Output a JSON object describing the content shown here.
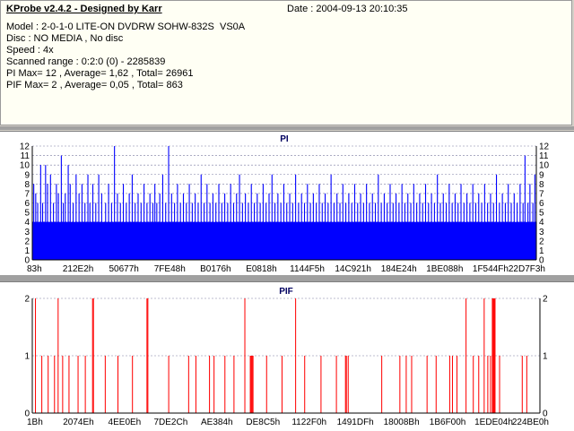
{
  "header": {
    "title": "KProbe v2.4.2 - Designed by Karr",
    "date": "Date : 2004-09-13 20:10:35",
    "lines": [
      "Model : 2-0-1-0 LITE-ON DVDRW SOHW-832S  VS0A",
      "Disc : NO MEDIA , No disc",
      "Speed : 4x",
      "Scanned range : 0:2:0 (0) - 2285839",
      "PI Max= 12 , Average= 1,62 , Total= 26961",
      "PIF Max= 2 , Average= 0,05 , Total= 863"
    ]
  },
  "colors": {
    "pi": "#0000ff",
    "pif": "#ff0000",
    "grid": "#7a7aa0"
  },
  "chart_data": [
    {
      "type": "bar",
      "title": "PI",
      "ylim": [
        0,
        12
      ],
      "yticks": [
        "0",
        "1",
        "2",
        "3",
        "4",
        "5",
        "6",
        "7",
        "8",
        "9",
        "10",
        "11",
        "12"
      ],
      "xtick_labels": [
        "83h",
        "212E2h",
        "50677h",
        "7FE48h",
        "B0176h",
        "E0818h",
        "1144F5h",
        "14C921h",
        "184E24h",
        "1BE088h",
        "1F544Fh",
        "22D7F3h"
      ],
      "grid": true,
      "baseline_value": 4,
      "spikes": [
        [
          1,
          8
        ],
        [
          3,
          7
        ],
        [
          5,
          6
        ],
        [
          8,
          10
        ],
        [
          10,
          6
        ],
        [
          13,
          10
        ],
        [
          15,
          8
        ],
        [
          18,
          9
        ],
        [
          21,
          6
        ],
        [
          24,
          8
        ],
        [
          26,
          7
        ],
        [
          29,
          11
        ],
        [
          31,
          6
        ],
        [
          33,
          7
        ],
        [
          36,
          10
        ],
        [
          38,
          8
        ],
        [
          41,
          6
        ],
        [
          44,
          9
        ],
        [
          47,
          7
        ],
        [
          50,
          8
        ],
        [
          53,
          6
        ],
        [
          56,
          9
        ],
        [
          58,
          6
        ],
        [
          61,
          8
        ],
        [
          64,
          6
        ],
        [
          67,
          9
        ],
        [
          70,
          7
        ],
        [
          74,
          6
        ],
        [
          77,
          8
        ],
        [
          80,
          6
        ],
        [
          83,
          12
        ],
        [
          86,
          7
        ],
        [
          89,
          6
        ],
        [
          92,
          8
        ],
        [
          95,
          6
        ],
        [
          98,
          7
        ],
        [
          101,
          9
        ],
        [
          104,
          6
        ],
        [
          107,
          7
        ],
        [
          110,
          6
        ],
        [
          113,
          8
        ],
        [
          116,
          6
        ],
        [
          119,
          7
        ],
        [
          122,
          6
        ],
        [
          124,
          8
        ],
        [
          126,
          6
        ],
        [
          129,
          7
        ],
        [
          132,
          9
        ],
        [
          135,
          6
        ],
        [
          138,
          12
        ],
        [
          141,
          7
        ],
        [
          144,
          6
        ],
        [
          147,
          8
        ],
        [
          150,
          6
        ],
        [
          153,
          7
        ],
        [
          156,
          6
        ],
        [
          159,
          8
        ],
        [
          162,
          6
        ],
        [
          165,
          7
        ],
        [
          168,
          6
        ],
        [
          171,
          9
        ],
        [
          174,
          6
        ],
        [
          177,
          8
        ],
        [
          180,
          6
        ],
        [
          183,
          7
        ],
        [
          186,
          6
        ],
        [
          189,
          8
        ],
        [
          192,
          6
        ],
        [
          195,
          7
        ],
        [
          198,
          6
        ],
        [
          201,
          8
        ],
        [
          204,
          6
        ],
        [
          207,
          7
        ],
        [
          210,
          9
        ],
        [
          213,
          6
        ],
        [
          216,
          7
        ],
        [
          219,
          6
        ],
        [
          222,
          8
        ],
        [
          225,
          6
        ],
        [
          228,
          7
        ],
        [
          231,
          6
        ],
        [
          234,
          8
        ],
        [
          237,
          6
        ],
        [
          240,
          7
        ],
        [
          243,
          9
        ],
        [
          246,
          6
        ],
        [
          249,
          7
        ],
        [
          252,
          6
        ],
        [
          255,
          8
        ],
        [
          258,
          6
        ],
        [
          261,
          7
        ],
        [
          264,
          6
        ],
        [
          267,
          9
        ],
        [
          270,
          6
        ],
        [
          273,
          7
        ],
        [
          276,
          6
        ],
        [
          279,
          8
        ],
        [
          282,
          6
        ],
        [
          285,
          7
        ],
        [
          288,
          6
        ],
        [
          291,
          8
        ],
        [
          294,
          6
        ],
        [
          297,
          7
        ],
        [
          300,
          6
        ],
        [
          303,
          9
        ],
        [
          306,
          6
        ],
        [
          309,
          7
        ],
        [
          312,
          6
        ],
        [
          315,
          8
        ],
        [
          318,
          6
        ],
        [
          321,
          7
        ],
        [
          324,
          6
        ],
        [
          327,
          8
        ],
        [
          330,
          6
        ],
        [
          333,
          7
        ],
        [
          336,
          6
        ],
        [
          339,
          8
        ],
        [
          342,
          6
        ],
        [
          345,
          7
        ],
        [
          348,
          6
        ],
        [
          351,
          9
        ],
        [
          354,
          6
        ],
        [
          357,
          7
        ],
        [
          360,
          6
        ],
        [
          363,
          8
        ],
        [
          366,
          6
        ],
        [
          369,
          7
        ],
        [
          372,
          6
        ],
        [
          375,
          8
        ],
        [
          378,
          6
        ],
        [
          381,
          7
        ],
        [
          384,
          6
        ],
        [
          387,
          8
        ],
        [
          390,
          6
        ],
        [
          393,
          7
        ],
        [
          396,
          6
        ],
        [
          399,
          8
        ],
        [
          402,
          6
        ],
        [
          405,
          7
        ],
        [
          408,
          6
        ],
        [
          411,
          9
        ],
        [
          414,
          6
        ],
        [
          417,
          7
        ],
        [
          420,
          6
        ],
        [
          423,
          8
        ],
        [
          426,
          6
        ],
        [
          429,
          7
        ],
        [
          432,
          6
        ],
        [
          435,
          8
        ],
        [
          438,
          6
        ],
        [
          441,
          7
        ],
        [
          444,
          6
        ],
        [
          447,
          8
        ],
        [
          450,
          6
        ],
        [
          453,
          7
        ],
        [
          456,
          6
        ],
        [
          459,
          8
        ],
        [
          462,
          6
        ],
        [
          465,
          7
        ],
        [
          468,
          6
        ],
        [
          471,
          9
        ],
        [
          474,
          6
        ],
        [
          477,
          7
        ],
        [
          480,
          6
        ],
        [
          483,
          8
        ],
        [
          486,
          6
        ],
        [
          489,
          7
        ],
        [
          492,
          6
        ],
        [
          495,
          8
        ],
        [
          498,
          6
        ],
        [
          500,
          11
        ],
        [
          503,
          6
        ],
        [
          505,
          8
        ],
        [
          508,
          6
        ],
        [
          510,
          9
        ]
      ]
    },
    {
      "type": "bar",
      "title": "PIF",
      "ylim": [
        0,
        2
      ],
      "yticks": [
        "0",
        "1",
        "2"
      ],
      "xtick_labels": [
        "1Bh",
        "2074Eh",
        "4EE0Eh",
        "7DE2Ch",
        "AE384h",
        "DE8C5h",
        "1122F0h",
        "1491DFh",
        "18008Bh",
        "1B6F00h",
        "1EDE04h",
        "224BE0h"
      ],
      "grid": true,
      "spikes": [
        [
          3,
          2
        ],
        [
          10,
          1
        ],
        [
          17,
          1
        ],
        [
          24,
          1
        ],
        [
          28,
          2
        ],
        [
          33,
          1
        ],
        [
          40,
          1
        ],
        [
          50,
          1
        ],
        [
          58,
          1
        ],
        [
          66,
          2
        ],
        [
          67,
          2
        ],
        [
          80,
          1
        ],
        [
          94,
          1
        ],
        [
          110,
          1
        ],
        [
          126,
          2
        ],
        [
          127,
          2
        ],
        [
          150,
          1
        ],
        [
          172,
          1
        ],
        [
          180,
          1
        ],
        [
          195,
          1
        ],
        [
          200,
          1
        ],
        [
          212,
          1
        ],
        [
          222,
          1
        ],
        [
          234,
          2
        ],
        [
          240,
          1
        ],
        [
          241,
          1
        ],
        [
          242,
          1
        ],
        [
          243,
          1
        ],
        [
          258,
          1
        ],
        [
          275,
          1
        ],
        [
          290,
          2
        ],
        [
          300,
          1
        ],
        [
          318,
          1
        ],
        [
          335,
          1
        ],
        [
          345,
          1
        ],
        [
          346,
          1
        ],
        [
          348,
          1
        ],
        [
          385,
          1
        ],
        [
          405,
          1
        ],
        [
          412,
          1
        ],
        [
          418,
          1
        ],
        [
          435,
          1
        ],
        [
          445,
          1
        ],
        [
          460,
          1
        ],
        [
          463,
          1
        ],
        [
          468,
          1
        ],
        [
          478,
          2
        ],
        [
          486,
          1
        ],
        [
          492,
          1
        ],
        [
          498,
          2
        ],
        [
          502,
          1
        ],
        [
          505,
          1
        ],
        [
          507,
          2
        ],
        [
          508,
          2
        ],
        [
          509,
          2
        ],
        [
          510,
          2
        ],
        [
          515,
          1
        ],
        [
          540,
          1
        ],
        [
          545,
          1
        ]
      ]
    }
  ]
}
